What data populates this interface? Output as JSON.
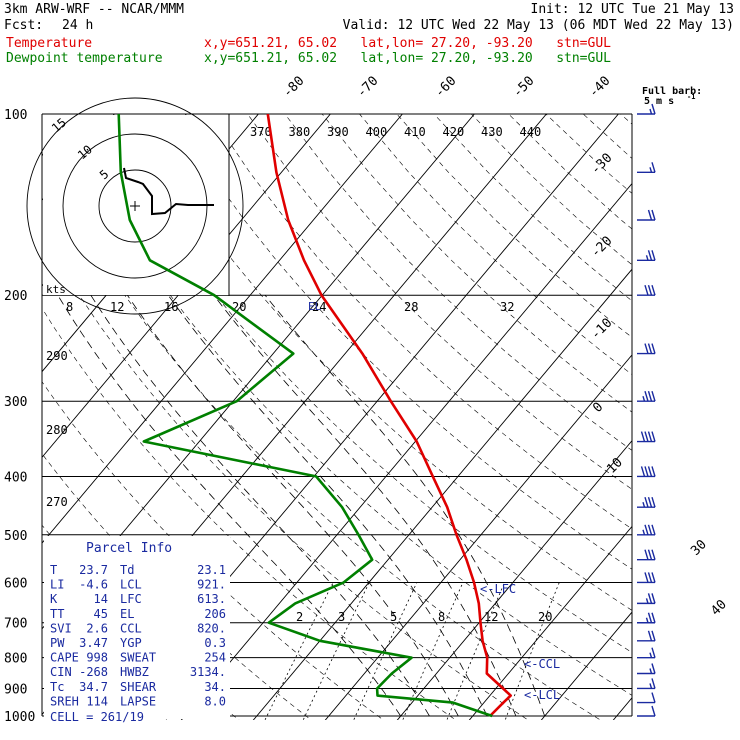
{
  "header": {
    "model": "3km ARW-WRF -- NCAR/MMM",
    "init": "Init: 12 UTC Tue 21 May 13",
    "fcst_label": "Fcst:",
    "fcst_value": "24 h",
    "valid": "Valid: 12 UTC Wed 22 May 13 (06 MDT Wed 22 May 13)",
    "temp_label": "Temperature",
    "temp_info": "x,y=651.21, 65.02   lat,lon= 27.20, -93.20   stn=GUL",
    "dew_label": "Dewpoint temperature",
    "dew_info": "x,y=651.21, 65.02   lat,lon= 27.20, -93.20   stn=GUL"
  },
  "barb_legend": {
    "line1": "Full barb:",
    "line2": "5 m s"
  },
  "parcel": {
    "title": "Parcel Info",
    "rows": [
      {
        "l": "T",
        "lv": "23.7",
        "r": "Td",
        "rv": "23.1"
      },
      {
        "l": "LI",
        "lv": "-4.6",
        "r": "LCL",
        "rv": "921."
      },
      {
        "l": "K",
        "lv": "14",
        "r": "LFC",
        "rv": "613."
      },
      {
        "l": "TT",
        "lv": "45",
        "r": "EL",
        "rv": "206"
      },
      {
        "l": "SVI",
        "lv": "2.6",
        "r": "CCL",
        "rv": "820."
      },
      {
        "l": "PW",
        "lv": "3.47",
        "r": "YGP",
        "rv": "0.3"
      },
      {
        "l": "CAPE",
        "lv": "998",
        "r": "SWEAT",
        "rv": "254"
      },
      {
        "l": "CIN",
        "lv": "-268",
        "r": "HWBZ",
        "rv": "3134."
      },
      {
        "l": "Tc",
        "lv": "34.7",
        "r": "SHEAR",
        "rv": "34."
      },
      {
        "l": "SREH",
        "lv": "114",
        "r": "LAPSE",
        "rv": "8.0"
      }
    ],
    "cell": "CELL = 261/19"
  },
  "hodograph": {
    "kts_label": "kts",
    "ring_labels": [
      "5",
      "10",
      "15"
    ]
  },
  "chart_data": {
    "type": "line",
    "title": "",
    "pressure_levels_hpa": [
      100,
      200,
      300,
      400,
      500,
      600,
      700,
      800,
      900,
      1000
    ],
    "isotherm_labels_c": [
      -80,
      -70,
      -60,
      -50,
      -40,
      -30,
      -20,
      -10,
      0,
      10,
      30,
      40
    ],
    "theta_labels_k": [
      370,
      380,
      390,
      400,
      410,
      420,
      430,
      440
    ],
    "theta_e_labels_k": [
      290,
      280,
      270
    ],
    "mixing_ratio_upper_labels": [
      "8",
      "12",
      "16",
      "20",
      "24",
      "28",
      "32"
    ],
    "mixing_ratio_lower_labels": [
      "2",
      "3",
      "5",
      "8",
      "12",
      "20"
    ],
    "markers": [
      "LFC",
      "CCL",
      "LCL"
    ],
    "series": [
      {
        "name": "Temperature",
        "color": "#e00000",
        "p": [
          1000,
          950,
          925,
          900,
          850,
          800,
          750,
          700,
          650,
          600,
          550,
          500,
          450,
          400,
          350,
          300,
          250,
          200,
          175,
          150,
          125,
          100
        ],
        "t": [
          22.4,
          22.7,
          22.9,
          21.0,
          17.0,
          15.2,
          12.6,
          10.2,
          7.7,
          4.6,
          0.9,
          -3.4,
          -7.9,
          -13.5,
          -19.8,
          -28.1,
          -37.6,
          -50.1,
          -56.6,
          -63.5,
          -70.7,
          -78.7
        ]
      },
      {
        "name": "Dewpoint temperature",
        "color": "#008000",
        "p": [
          1000,
          950,
          925,
          900,
          850,
          800,
          750,
          700,
          650,
          600,
          550,
          500,
          450,
          400,
          350,
          300,
          250,
          200,
          175,
          150,
          125,
          100
        ],
        "t": [
          22.7,
          15.7,
          4.4,
          3.5,
          3.8,
          4.7,
          -10.0,
          -19.2,
          -17.8,
          -13.5,
          -12.2,
          -17.0,
          -22.5,
          -29.7,
          -57.7,
          -49.5,
          -47.2,
          -65.0,
          -78.0,
          -85.5,
          -92.3,
          -99.4
        ]
      }
    ],
    "wind_barbs_knots": [
      {
        "p": 1000,
        "spd": 10
      },
      {
        "p": 950,
        "spd": 10
      },
      {
        "p": 900,
        "spd": 15
      },
      {
        "p": 850,
        "spd": 15
      },
      {
        "p": 800,
        "spd": 15
      },
      {
        "p": 750,
        "spd": 20
      },
      {
        "p": 700,
        "spd": 25
      },
      {
        "p": 650,
        "spd": 25
      },
      {
        "p": 600,
        "spd": 30
      },
      {
        "p": 550,
        "spd": 30
      },
      {
        "p": 500,
        "spd": 35
      },
      {
        "p": 450,
        "spd": 35
      },
      {
        "p": 400,
        "spd": 40
      },
      {
        "p": 350,
        "spd": 40
      },
      {
        "p": 300,
        "spd": 35
      },
      {
        "p": 250,
        "spd": 30
      },
      {
        "p": 200,
        "spd": 30
      },
      {
        "p": 175,
        "spd": 25
      },
      {
        "p": 150,
        "spd": 20
      },
      {
        "p": 125,
        "spd": 15
      },
      {
        "p": 100,
        "spd": 15
      }
    ]
  }
}
